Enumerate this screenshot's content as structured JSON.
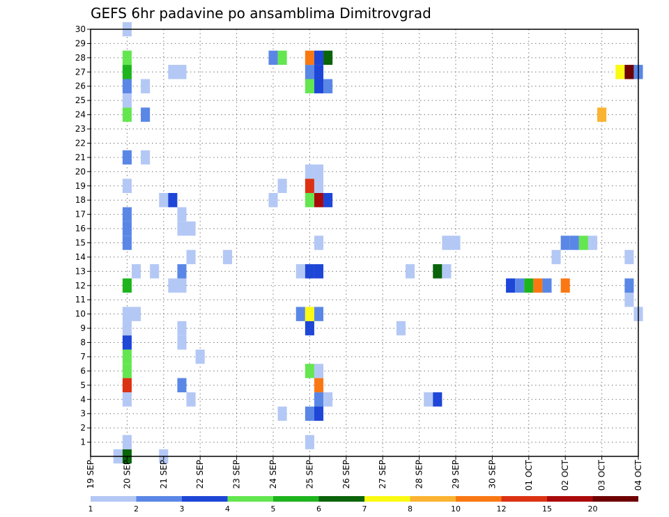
{
  "chart_data": {
    "type": "heatmap",
    "title": "GEFS 6hr padavine po ansamblima Dimitrovgrad",
    "y_ticks": [
      "1",
      "2",
      "3",
      "4",
      "5",
      "6",
      "7",
      "8",
      "9",
      "10",
      "11",
      "12",
      "13",
      "14",
      "15",
      "16",
      "17",
      "18",
      "19",
      "20",
      "21",
      "22",
      "23",
      "24",
      "25",
      "26",
      "27",
      "28",
      "29",
      "30"
    ],
    "x_ticks": [
      "19 SEP",
      "20 SEP",
      "21 SEP",
      "22 SEP",
      "23 SEP",
      "24 SEP",
      "25 SEP",
      "26 SEP",
      "27 SEP",
      "28 SEP",
      "29 SEP",
      "30 SEP",
      "01 OCT",
      "02 OCT",
      "03 OCT",
      "04 OCT"
    ],
    "x_range_days": [
      0,
      15
    ],
    "y_range": [
      0,
      30
    ],
    "grid": true,
    "legend": {
      "placement": "bottom",
      "labels": [
        "1",
        "2",
        "3",
        "4",
        "5",
        "6",
        "7",
        "8",
        "10",
        "12",
        "15",
        "20"
      ],
      "colors": [
        "#b4c8f5",
        "#5a87e6",
        "#1e46d7",
        "#64e650",
        "#1eb41e",
        "#0a640a",
        "#fafa14",
        "#fab432",
        "#fa7814",
        "#dc3214",
        "#aa0a0a",
        "#6e0000"
      ]
    },
    "cells_note": "each cell: d = day offset from 19 SEP (0.25 = 6 h step), m = ensemble member, c = legend bin index",
    "cells": [
      {
        "d": 0.75,
        "m": 0,
        "c": 0
      },
      {
        "d": 1.0,
        "m": 0,
        "c": 5
      },
      {
        "d": 2.0,
        "m": 0,
        "c": 0
      },
      {
        "d": 1.0,
        "m": 1,
        "c": 0
      },
      {
        "d": 6.0,
        "m": 1,
        "c": 0
      },
      {
        "d": 5.25,
        "m": 3,
        "c": 0
      },
      {
        "d": 6.0,
        "m": 3,
        "c": 1
      },
      {
        "d": 6.25,
        "m": 3,
        "c": 2
      },
      {
        "d": 1.0,
        "m": 4,
        "c": 0
      },
      {
        "d": 2.75,
        "m": 4,
        "c": 0
      },
      {
        "d": 6.25,
        "m": 4,
        "c": 1
      },
      {
        "d": 6.5,
        "m": 4,
        "c": 0
      },
      {
        "d": 9.25,
        "m": 4,
        "c": 0
      },
      {
        "d": 9.5,
        "m": 4,
        "c": 2
      },
      {
        "d": 1.0,
        "m": 5,
        "c": 9
      },
      {
        "d": 2.5,
        "m": 5,
        "c": 1
      },
      {
        "d": 6.25,
        "m": 5,
        "c": 8
      },
      {
        "d": 1.0,
        "m": 6,
        "c": 3
      },
      {
        "d": 6.0,
        "m": 6,
        "c": 3
      },
      {
        "d": 6.25,
        "m": 6,
        "c": 0
      },
      {
        "d": 1.0,
        "m": 7,
        "c": 3
      },
      {
        "d": 3.0,
        "m": 7,
        "c": 0
      },
      {
        "d": 1.0,
        "m": 8,
        "c": 2
      },
      {
        "d": 2.5,
        "m": 8,
        "c": 0
      },
      {
        "d": 1.0,
        "m": 9,
        "c": 0
      },
      {
        "d": 2.5,
        "m": 9,
        "c": 0
      },
      {
        "d": 6.0,
        "m": 9,
        "c": 2
      },
      {
        "d": 8.5,
        "m": 9,
        "c": 0
      },
      {
        "d": 1.0,
        "m": 10,
        "c": 0
      },
      {
        "d": 1.25,
        "m": 10,
        "c": 0
      },
      {
        "d": 5.75,
        "m": 10,
        "c": 1
      },
      {
        "d": 6.0,
        "m": 10,
        "c": 6
      },
      {
        "d": 6.25,
        "m": 10,
        "c": 1
      },
      {
        "d": 15.0,
        "m": 10,
        "c": 0
      },
      {
        "d": 14.75,
        "m": 11,
        "c": 0
      },
      {
        "d": 1.0,
        "m": 12,
        "c": 4
      },
      {
        "d": 2.25,
        "m": 12,
        "c": 0
      },
      {
        "d": 2.5,
        "m": 12,
        "c": 0
      },
      {
        "d": 11.5,
        "m": 12,
        "c": 2
      },
      {
        "d": 11.75,
        "m": 12,
        "c": 1
      },
      {
        "d": 12.0,
        "m": 12,
        "c": 4
      },
      {
        "d": 12.25,
        "m": 12,
        "c": 8
      },
      {
        "d": 12.5,
        "m": 12,
        "c": 1
      },
      {
        "d": 13.0,
        "m": 12,
        "c": 8
      },
      {
        "d": 14.75,
        "m": 12,
        "c": 1
      },
      {
        "d": 1.25,
        "m": 13,
        "c": 0
      },
      {
        "d": 1.75,
        "m": 13,
        "c": 0
      },
      {
        "d": 2.5,
        "m": 13,
        "c": 1
      },
      {
        "d": 5.75,
        "m": 13,
        "c": 0
      },
      {
        "d": 6.0,
        "m": 13,
        "c": 2
      },
      {
        "d": 6.25,
        "m": 13,
        "c": 2
      },
      {
        "d": 8.75,
        "m": 13,
        "c": 0
      },
      {
        "d": 9.5,
        "m": 13,
        "c": 5
      },
      {
        "d": 9.75,
        "m": 13,
        "c": 0
      },
      {
        "d": 2.75,
        "m": 14,
        "c": 0
      },
      {
        "d": 3.75,
        "m": 14,
        "c": 0
      },
      {
        "d": 12.75,
        "m": 14,
        "c": 0
      },
      {
        "d": 14.75,
        "m": 14,
        "c": 0
      },
      {
        "d": 1.0,
        "m": 15,
        "c": 1
      },
      {
        "d": 6.25,
        "m": 15,
        "c": 0
      },
      {
        "d": 9.75,
        "m": 15,
        "c": 0
      },
      {
        "d": 10.0,
        "m": 15,
        "c": 0
      },
      {
        "d": 13.0,
        "m": 15,
        "c": 1
      },
      {
        "d": 13.25,
        "m": 15,
        "c": 1
      },
      {
        "d": 13.5,
        "m": 15,
        "c": 3
      },
      {
        "d": 13.75,
        "m": 15,
        "c": 0
      },
      {
        "d": 1.0,
        "m": 16,
        "c": 1
      },
      {
        "d": 2.5,
        "m": 16,
        "c": 0
      },
      {
        "d": 2.75,
        "m": 16,
        "c": 0
      },
      {
        "d": 1.0,
        "m": 17,
        "c": 1
      },
      {
        "d": 2.5,
        "m": 17,
        "c": 0
      },
      {
        "d": 2.0,
        "m": 18,
        "c": 0
      },
      {
        "d": 2.25,
        "m": 18,
        "c": 2
      },
      {
        "d": 5.0,
        "m": 18,
        "c": 0
      },
      {
        "d": 6.0,
        "m": 18,
        "c": 3
      },
      {
        "d": 6.25,
        "m": 18,
        "c": 10
      },
      {
        "d": 6.5,
        "m": 18,
        "c": 2
      },
      {
        "d": 1.0,
        "m": 19,
        "c": 0
      },
      {
        "d": 5.25,
        "m": 19,
        "c": 0
      },
      {
        "d": 6.0,
        "m": 19,
        "c": 9
      },
      {
        "d": 6.25,
        "m": 19,
        "c": 0
      },
      {
        "d": 6.0,
        "m": 20,
        "c": 0
      },
      {
        "d": 6.25,
        "m": 20,
        "c": 0
      },
      {
        "d": 1.0,
        "m": 21,
        "c": 1
      },
      {
        "d": 1.5,
        "m": 21,
        "c": 0
      },
      {
        "d": 1.0,
        "m": 24,
        "c": 3
      },
      {
        "d": 1.5,
        "m": 24,
        "c": 1
      },
      {
        "d": 14.0,
        "m": 24,
        "c": 7
      },
      {
        "d": 1.0,
        "m": 25,
        "c": 0
      },
      {
        "d": 1.0,
        "m": 26,
        "c": 1
      },
      {
        "d": 1.5,
        "m": 26,
        "c": 0
      },
      {
        "d": 6.0,
        "m": 26,
        "c": 3
      },
      {
        "d": 6.25,
        "m": 26,
        "c": 2
      },
      {
        "d": 6.5,
        "m": 26,
        "c": 1
      },
      {
        "d": 1.0,
        "m": 27,
        "c": 4
      },
      {
        "d": 2.25,
        "m": 27,
        "c": 0
      },
      {
        "d": 2.5,
        "m": 27,
        "c": 0
      },
      {
        "d": 6.0,
        "m": 27,
        "c": 1
      },
      {
        "d": 6.25,
        "m": 27,
        "c": 2
      },
      {
        "d": 14.5,
        "m": 27,
        "c": 6
      },
      {
        "d": 14.75,
        "m": 27,
        "c": 11
      },
      {
        "d": 15.0,
        "m": 27,
        "c": 1
      },
      {
        "d": 1.0,
        "m": 28,
        "c": 3
      },
      {
        "d": 5.0,
        "m": 28,
        "c": 1
      },
      {
        "d": 5.25,
        "m": 28,
        "c": 3
      },
      {
        "d": 6.0,
        "m": 28,
        "c": 8
      },
      {
        "d": 6.25,
        "m": 28,
        "c": 2
      },
      {
        "d": 6.5,
        "m": 28,
        "c": 5
      },
      {
        "d": 1.0,
        "m": 30,
        "c": 0
      }
    ]
  }
}
